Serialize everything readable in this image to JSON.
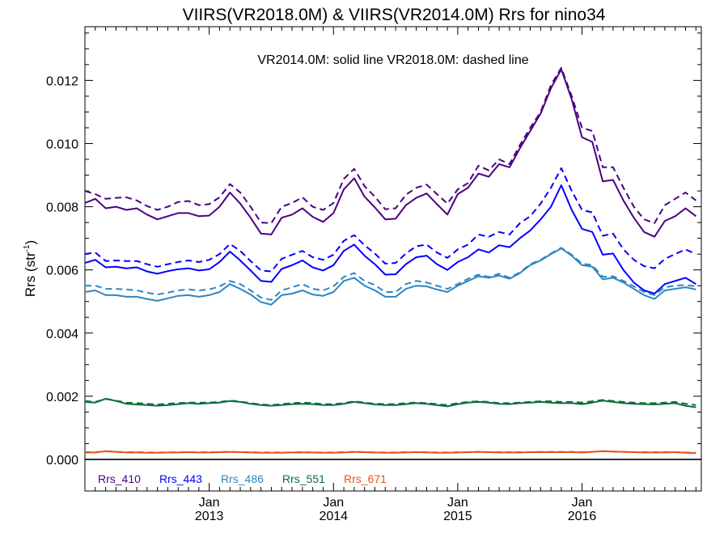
{
  "chart_data": {
    "type": "line",
    "title": "VIIRS(VR2018.0M) & VIIRS(VR2014.0M)  Rrs for nino34",
    "ylabel": "Rrs (str",
    "ylabel_sup": "-1",
    "ylabel_close": ")",
    "annotation": "VR2014.0M: solid line   VR2018.0M: dashed line",
    "ylim": [
      -0.001,
      0.0137
    ],
    "xlim": [
      2012.0,
      2016.96
    ],
    "yticks": [
      "0.000",
      "0.002",
      "0.004",
      "0.006",
      "0.008",
      "0.010",
      "0.012"
    ],
    "ytick_values": [
      0.0,
      0.002,
      0.004,
      0.006,
      0.008,
      0.01,
      0.012
    ],
    "xticks": [
      {
        "line1": "Jan",
        "line2": "2013",
        "x": 2013.0
      },
      {
        "line1": "Jan",
        "line2": "2014",
        "x": 2014.0
      },
      {
        "line1": "Jan",
        "line2": "2015",
        "x": 2015.0
      },
      {
        "line1": "Jan",
        "line2": "2016",
        "x": 2016.0
      }
    ],
    "legend_placement": "bottom-left",
    "grid": false,
    "x": [
      2012.0,
      2012.083,
      2012.167,
      2012.25,
      2012.333,
      2012.417,
      2012.5,
      2012.583,
      2012.667,
      2012.75,
      2012.833,
      2012.917,
      2013.0,
      2013.083,
      2013.167,
      2013.25,
      2013.333,
      2013.417,
      2013.5,
      2013.583,
      2013.667,
      2013.75,
      2013.833,
      2013.917,
      2014.0,
      2014.083,
      2014.167,
      2014.25,
      2014.333,
      2014.417,
      2014.5,
      2014.583,
      2014.667,
      2014.75,
      2014.833,
      2014.917,
      2015.0,
      2015.083,
      2015.167,
      2015.25,
      2015.333,
      2015.417,
      2015.5,
      2015.583,
      2015.667,
      2015.75,
      2015.833,
      2015.917,
      2016.0,
      2016.083,
      2016.167,
      2016.25,
      2016.333,
      2016.417,
      2016.5,
      2016.583,
      2016.667,
      2016.75,
      2016.833,
      2016.917
    ],
    "series": [
      {
        "name": "Rrs_410",
        "color": "#4b0082",
        "solid": [
          0.00812,
          0.00825,
          0.00795,
          0.008,
          0.0079,
          0.00795,
          0.00775,
          0.0076,
          0.0077,
          0.0078,
          0.0078,
          0.0077,
          0.00772,
          0.008,
          0.00845,
          0.0081,
          0.00765,
          0.00715,
          0.00712,
          0.00765,
          0.00775,
          0.00795,
          0.00768,
          0.00752,
          0.0078,
          0.00855,
          0.0089,
          0.00832,
          0.00798,
          0.0076,
          0.00762,
          0.00805,
          0.00828,
          0.00842,
          0.00808,
          0.00775,
          0.0084,
          0.0086,
          0.00905,
          0.00895,
          0.00935,
          0.00925,
          0.00985,
          0.0104,
          0.01095,
          0.01175,
          0.01235,
          0.0114,
          0.0102,
          0.01005,
          0.0088,
          0.00885,
          0.0082,
          0.00765,
          0.0072,
          0.00705,
          0.00755,
          0.0077,
          0.00795,
          0.0077
        ],
        "dashed": [
          0.0085,
          0.0084,
          0.00825,
          0.00828,
          0.0083,
          0.0082,
          0.00802,
          0.0079,
          0.008,
          0.00815,
          0.00818,
          0.00805,
          0.00808,
          0.0083,
          0.00872,
          0.00845,
          0.008,
          0.0075,
          0.00748,
          0.008,
          0.00812,
          0.0083,
          0.008,
          0.0079,
          0.00812,
          0.00888,
          0.0092,
          0.00865,
          0.00832,
          0.00792,
          0.00795,
          0.00838,
          0.0086,
          0.0087,
          0.0084,
          0.0081,
          0.00855,
          0.00875,
          0.0093,
          0.00915,
          0.0095,
          0.00935,
          0.00995,
          0.0105,
          0.011,
          0.01185,
          0.0124,
          0.0115,
          0.0105,
          0.0104,
          0.00925,
          0.00925,
          0.0086,
          0.008,
          0.0076,
          0.00748,
          0.00805,
          0.00825,
          0.00845,
          0.0082
        ]
      },
      {
        "name": "Rrs_443",
        "color": "#0000ff",
        "solid": [
          0.00622,
          0.00632,
          0.00608,
          0.0061,
          0.00605,
          0.00608,
          0.00595,
          0.00588,
          0.00596,
          0.00602,
          0.00605,
          0.00598,
          0.00602,
          0.00625,
          0.00658,
          0.0063,
          0.00598,
          0.00565,
          0.00562,
          0.00603,
          0.00615,
          0.0063,
          0.00608,
          0.00598,
          0.00615,
          0.0066,
          0.0068,
          0.00645,
          0.00618,
          0.00585,
          0.00586,
          0.00618,
          0.0064,
          0.00645,
          0.00618,
          0.006,
          0.00625,
          0.0064,
          0.00665,
          0.00655,
          0.00678,
          0.00672,
          0.007,
          0.00725,
          0.0076,
          0.008,
          0.00868,
          0.0079,
          0.0073,
          0.0072,
          0.00648,
          0.00652,
          0.006,
          0.0056,
          0.00535,
          0.00525,
          0.00555,
          0.00565,
          0.00575,
          0.00555
        ],
        "dashed": [
          0.0065,
          0.00655,
          0.00628,
          0.0063,
          0.00628,
          0.00628,
          0.00618,
          0.0061,
          0.00618,
          0.00625,
          0.0063,
          0.00625,
          0.00632,
          0.0065,
          0.00682,
          0.0066,
          0.00628,
          0.00598,
          0.00595,
          0.00635,
          0.00648,
          0.0066,
          0.0064,
          0.00632,
          0.00648,
          0.00692,
          0.0071,
          0.00678,
          0.00652,
          0.0062,
          0.00622,
          0.00652,
          0.00675,
          0.0068,
          0.00655,
          0.00638,
          0.00665,
          0.0068,
          0.00712,
          0.00705,
          0.0072,
          0.00712,
          0.00748,
          0.0077,
          0.0081,
          0.0086,
          0.00922,
          0.0085,
          0.0079,
          0.00782,
          0.00708,
          0.00715,
          0.00665,
          0.00632,
          0.00612,
          0.00605,
          0.00635,
          0.0065,
          0.00665,
          0.0065
        ]
      },
      {
        "name": "Rrs_486",
        "color": "#2e86c1",
        "solid": [
          0.0053,
          0.00535,
          0.0052,
          0.0052,
          0.00515,
          0.00515,
          0.00508,
          0.00502,
          0.0051,
          0.00518,
          0.0052,
          0.00515,
          0.0052,
          0.0053,
          0.00555,
          0.0054,
          0.00522,
          0.00498,
          0.0049,
          0.0052,
          0.00525,
          0.00535,
          0.00522,
          0.00518,
          0.0053,
          0.00565,
          0.00575,
          0.0055,
          0.00535,
          0.00515,
          0.00515,
          0.0054,
          0.0055,
          0.00548,
          0.00538,
          0.0053,
          0.0055,
          0.00565,
          0.0058,
          0.00575,
          0.00582,
          0.00572,
          0.0059,
          0.00615,
          0.0063,
          0.0065,
          0.00668,
          0.00645,
          0.00615,
          0.0061,
          0.0057,
          0.00575,
          0.0056,
          0.0054,
          0.0052,
          0.00508,
          0.00535,
          0.0054,
          0.00545,
          0.00538
        ],
        "dashed": [
          0.0055,
          0.0055,
          0.0054,
          0.0054,
          0.00538,
          0.00535,
          0.00528,
          0.00522,
          0.00528,
          0.00535,
          0.00538,
          0.00535,
          0.00538,
          0.00548,
          0.00565,
          0.00555,
          0.00535,
          0.00512,
          0.00505,
          0.00535,
          0.00545,
          0.00555,
          0.0054,
          0.00535,
          0.00548,
          0.00578,
          0.0059,
          0.00565,
          0.00552,
          0.0053,
          0.0053,
          0.00555,
          0.00565,
          0.0056,
          0.0055,
          0.0054,
          0.00555,
          0.00572,
          0.00585,
          0.00578,
          0.00588,
          0.00575,
          0.00592,
          0.00618,
          0.00632,
          0.00652,
          0.0067,
          0.00648,
          0.0062,
          0.00615,
          0.00578,
          0.0058,
          0.00565,
          0.00548,
          0.0053,
          0.0052,
          0.00545,
          0.0055,
          0.00552,
          0.00548
        ]
      },
      {
        "name": "Rrs_551",
        "color": "#0b6e3c",
        "solid": [
          0.00182,
          0.0018,
          0.00192,
          0.00185,
          0.00176,
          0.00174,
          0.00172,
          0.0017,
          0.00172,
          0.00175,
          0.00178,
          0.00176,
          0.00178,
          0.0018,
          0.00185,
          0.00182,
          0.00176,
          0.00172,
          0.0017,
          0.00172,
          0.00175,
          0.00176,
          0.00175,
          0.00172,
          0.00172,
          0.00176,
          0.00182,
          0.00178,
          0.00174,
          0.00172,
          0.00172,
          0.00175,
          0.00178,
          0.00176,
          0.00172,
          0.00168,
          0.00175,
          0.0018,
          0.00182,
          0.0018,
          0.00176,
          0.00175,
          0.00178,
          0.0018,
          0.00182,
          0.0018,
          0.00178,
          0.00178,
          0.00175,
          0.0018,
          0.00186,
          0.00182,
          0.00178,
          0.00176,
          0.00175,
          0.00174,
          0.00176,
          0.00178,
          0.0017,
          0.00165
        ],
        "dashed": [
          0.00185,
          0.00182,
          0.00192,
          0.00186,
          0.0018,
          0.00178,
          0.00176,
          0.00174,
          0.00176,
          0.00178,
          0.0018,
          0.0018,
          0.0018,
          0.00182,
          0.00186,
          0.00183,
          0.00178,
          0.00174,
          0.00172,
          0.00175,
          0.00178,
          0.0018,
          0.00178,
          0.00175,
          0.00175,
          0.00178,
          0.00184,
          0.0018,
          0.00176,
          0.00175,
          0.00175,
          0.00178,
          0.0018,
          0.00178,
          0.00175,
          0.00172,
          0.00178,
          0.00182,
          0.00184,
          0.00182,
          0.00178,
          0.00178,
          0.0018,
          0.00182,
          0.00184,
          0.00184,
          0.00182,
          0.00182,
          0.0018,
          0.00184,
          0.00188,
          0.00185,
          0.00182,
          0.0018,
          0.00178,
          0.00178,
          0.0018,
          0.00182,
          0.00176,
          0.00172
        ]
      },
      {
        "name": "Rrs_671",
        "color": "#e0561a",
        "solid": [
          0.00022,
          0.00022,
          0.00026,
          0.00024,
          0.00022,
          0.00022,
          0.00021,
          0.00021,
          0.00022,
          0.00022,
          0.00023,
          0.00022,
          0.00022,
          0.00023,
          0.00024,
          0.00023,
          0.00022,
          0.00021,
          0.00021,
          0.00021,
          0.00022,
          0.00022,
          0.00022,
          0.00021,
          0.00021,
          0.00022,
          0.00024,
          0.00023,
          0.00022,
          0.00021,
          0.00021,
          0.00022,
          0.00023,
          0.00022,
          0.00021,
          0.00021,
          0.00022,
          0.00023,
          0.00024,
          0.00023,
          0.00022,
          0.00022,
          0.00022,
          0.00023,
          0.00023,
          0.00023,
          0.00023,
          0.00023,
          0.00022,
          0.00024,
          0.00026,
          0.00025,
          0.00024,
          0.00023,
          0.00022,
          0.00022,
          0.00022,
          0.00023,
          0.00021,
          0.0002
        ],
        "dashed": [
          0.00023,
          0.00023,
          0.00026,
          0.00024,
          0.00023,
          0.00023,
          0.00022,
          0.00022,
          0.00022,
          0.00023,
          0.00023,
          0.00023,
          0.00023,
          0.00023,
          0.00024,
          0.00023,
          0.00023,
          0.00022,
          0.00022,
          0.00022,
          0.00022,
          0.00023,
          0.00022,
          0.00022,
          0.00022,
          0.00023,
          0.00024,
          0.00023,
          0.00022,
          0.00022,
          0.00022,
          0.00023,
          0.00023,
          0.00023,
          0.00022,
          0.00022,
          0.00023,
          0.00023,
          0.00024,
          0.00023,
          0.00023,
          0.00023,
          0.00023,
          0.00023,
          0.00024,
          0.00024,
          0.00024,
          0.00024,
          0.00023,
          0.00024,
          0.00026,
          0.00025,
          0.00024,
          0.00023,
          0.00023,
          0.00023,
          0.00023,
          0.00023,
          0.00022,
          0.00021
        ]
      }
    ]
  }
}
